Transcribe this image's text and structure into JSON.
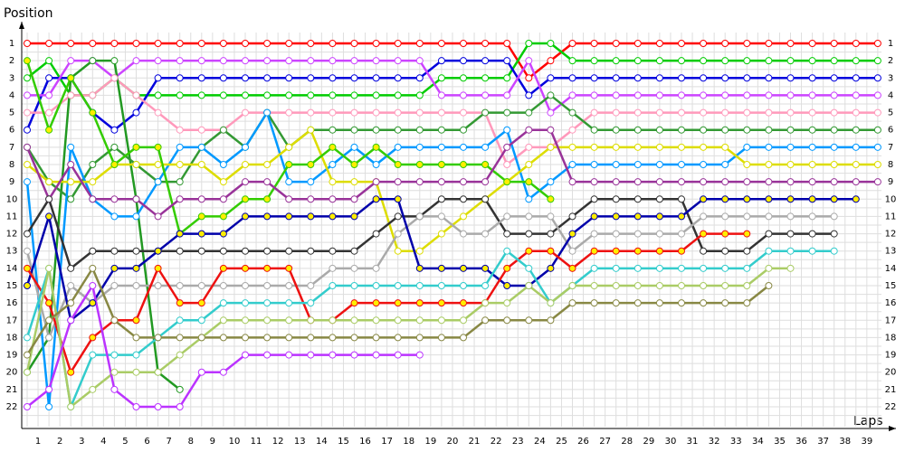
{
  "chart_data": {
    "type": "lap",
    "y_label": "Position",
    "x_label": "Laps",
    "x": [
      0,
      1,
      2,
      3,
      4,
      5,
      6,
      7,
      8,
      9,
      10,
      11,
      12,
      13,
      14,
      15,
      16,
      17,
      18,
      19,
      20,
      21,
      22,
      23,
      24,
      25,
      26,
      27,
      28,
      29,
      30,
      31,
      32,
      33,
      34,
      35,
      36,
      37,
      38,
      39
    ],
    "xlim": [
      0,
      39
    ],
    "xticks": [
      1,
      2,
      3,
      4,
      5,
      6,
      7,
      8,
      9,
      10,
      11,
      12,
      13,
      14,
      15,
      16,
      17,
      18,
      19,
      20,
      21,
      22,
      23,
      24,
      25,
      26,
      27,
      28,
      29,
      30,
      31,
      32,
      33,
      34,
      35,
      36,
      37,
      38,
      39
    ],
    "ylim": [
      1,
      22
    ],
    "y_inverted": true,
    "yticks": [
      1,
      2,
      3,
      4,
      5,
      6,
      7,
      8,
      9,
      10,
      11,
      12,
      13,
      14,
      15,
      16,
      17,
      18,
      19,
      20,
      21,
      22
    ],
    "grid": true,
    "series": [
      {
        "color": "#ff0000",
        "marker_fill": "#ffffff",
        "values": [
          1,
          1,
          1,
          1,
          1,
          1,
          1,
          1,
          1,
          1,
          1,
          1,
          1,
          1,
          1,
          1,
          1,
          1,
          1,
          1,
          1,
          1,
          1,
          3,
          2,
          1,
          1,
          1,
          1,
          1,
          1,
          1,
          1,
          1,
          1,
          1,
          1,
          1,
          1,
          1
        ]
      },
      {
        "color": "#00cc00",
        "marker_fill": "#ffffff",
        "values": [
          3,
          2,
          4,
          4,
          3,
          4,
          4,
          4,
          4,
          4,
          4,
          4,
          4,
          4,
          4,
          4,
          4,
          4,
          4,
          3,
          3,
          3,
          3,
          1,
          1,
          2,
          2,
          2,
          2,
          2,
          2,
          2,
          2,
          2,
          2,
          2,
          2,
          2,
          2,
          2
        ]
      },
      {
        "color": "#0000dd",
        "marker_fill": "#ffffff",
        "values": [
          6,
          3,
          3,
          5,
          6,
          5,
          3,
          3,
          3,
          3,
          3,
          3,
          3,
          3,
          3,
          3,
          3,
          3,
          3,
          2,
          2,
          2,
          2,
          4,
          3,
          3,
          3,
          3,
          3,
          3,
          3,
          3,
          3,
          3,
          3,
          3,
          3,
          3,
          3,
          3
        ]
      },
      {
        "color": "#cc44ff",
        "marker_fill": "#ffffff",
        "values": [
          4,
          4,
          2,
          2,
          3,
          2,
          2,
          2,
          2,
          2,
          2,
          2,
          2,
          2,
          2,
          2,
          2,
          2,
          2,
          4,
          4,
          4,
          4,
          2,
          5,
          4,
          4,
          4,
          4,
          4,
          4,
          4,
          4,
          4,
          4,
          4,
          4,
          4,
          4,
          4
        ]
      },
      {
        "color": "#ff99bb",
        "marker_fill": "#ffffff",
        "values": [
          5,
          5,
          4,
          4,
          3,
          4,
          5,
          6,
          6,
          6,
          5,
          5,
          5,
          5,
          5,
          5,
          5,
          5,
          5,
          5,
          5,
          5,
          8,
          7,
          7,
          6,
          5,
          5,
          5,
          5,
          5,
          5,
          5,
          5,
          5,
          5,
          5,
          5,
          5,
          5
        ]
      },
      {
        "color": "#229922",
        "marker_fill": "#ffffff",
        "values": [
          20,
          18,
          3,
          2,
          2,
          10,
          20,
          21,
          null,
          null,
          null,
          null,
          null,
          null,
          null,
          null,
          null,
          null,
          null,
          null,
          null,
          null,
          null,
          null,
          null,
          null,
          null,
          null,
          null,
          null,
          null,
          null,
          null,
          null,
          null,
          null,
          null,
          null,
          null,
          null
        ]
      },
      {
        "color": "#339933",
        "marker_fill": "#ffffff",
        "values": [
          7,
          9,
          10,
          8,
          7,
          8,
          9,
          9,
          7,
          6,
          7,
          5,
          7,
          6,
          6,
          6,
          6,
          6,
          6,
          6,
          6,
          5,
          5,
          5,
          4,
          5,
          6,
          6,
          6,
          6,
          6,
          6,
          6,
          6,
          6,
          6,
          6,
          6,
          6,
          6
        ]
      },
      {
        "color": "#0099ff",
        "marker_fill": "#ffffff",
        "values": [
          9,
          22,
          7,
          10,
          11,
          11,
          9,
          7,
          7,
          8,
          7,
          5,
          9,
          9,
          8,
          7,
          8,
          7,
          7,
          7,
          7,
          7,
          6,
          10,
          9,
          8,
          8,
          8,
          8,
          8,
          8,
          8,
          8,
          7,
          7,
          7,
          7,
          7,
          7,
          7
        ]
      },
      {
        "color": "#dddd00",
        "marker_fill": "#ffffff",
        "values": [
          8,
          9,
          9,
          9,
          8,
          8,
          8,
          8,
          8,
          9,
          8,
          8,
          7,
          6,
          9,
          9,
          9,
          13,
          13,
          12,
          11,
          10,
          9,
          8,
          7,
          7,
          7,
          7,
          7,
          7,
          7,
          7,
          7,
          8,
          8,
          8,
          8,
          8,
          8,
          8
        ]
      },
      {
        "color": "#33cc00",
        "marker_fill": "#ffee00",
        "values": [
          2,
          6,
          3,
          5,
          8,
          7,
          7,
          12,
          11,
          11,
          10,
          10,
          8,
          8,
          7,
          8,
          7,
          8,
          8,
          8,
          8,
          8,
          9,
          9,
          10,
          null,
          null,
          null,
          null,
          null,
          null,
          null,
          null,
          null,
          null,
          null,
          null,
          null,
          null,
          null
        ]
      },
      {
        "color": "#993399",
        "marker_fill": "#ffffff",
        "values": [
          7,
          10,
          8,
          10,
          10,
          10,
          11,
          10,
          10,
          10,
          9,
          9,
          10,
          10,
          10,
          10,
          9,
          9,
          9,
          9,
          9,
          9,
          7,
          6,
          6,
          9,
          9,
          9,
          9,
          9,
          9,
          9,
          9,
          9,
          9,
          9,
          9,
          9,
          9,
          9
        ]
      },
      {
        "color": "#333333",
        "marker_fill": "#ffffff",
        "values": [
          12,
          10,
          14,
          13,
          13,
          13,
          13,
          13,
          13,
          13,
          13,
          13,
          13,
          13,
          13,
          13,
          12,
          11,
          11,
          10,
          10,
          10,
          12,
          12,
          12,
          11,
          10,
          10,
          10,
          10,
          10,
          13,
          13,
          13,
          12,
          12,
          12,
          12,
          null,
          null
        ]
      },
      {
        "color": "#aaaaaa",
        "marker_fill": "#ffffff",
        "values": [
          13,
          18,
          15,
          16,
          15,
          15,
          15,
          15,
          15,
          15,
          15,
          15,
          15,
          15,
          14,
          14,
          14,
          12,
          11,
          11,
          12,
          12,
          11,
          11,
          11,
          13,
          12,
          12,
          12,
          12,
          12,
          11,
          11,
          11,
          11,
          11,
          11,
          11,
          null,
          null
        ]
      },
      {
        "color": "#0000aa",
        "marker_fill": "#ffee00",
        "values": [
          15,
          11,
          17,
          16,
          14,
          14,
          13,
          12,
          12,
          12,
          11,
          11,
          11,
          11,
          11,
          11,
          10,
          10,
          14,
          14,
          14,
          14,
          15,
          15,
          14,
          12,
          11,
          11,
          11,
          11,
          11,
          10,
          10,
          10,
          10,
          10,
          10,
          10,
          10,
          null
        ]
      },
      {
        "color": "#ee1111",
        "marker_fill": "#ffee00",
        "values": [
          14,
          16,
          20,
          18,
          17,
          17,
          14,
          16,
          16,
          14,
          14,
          14,
          14,
          17,
          17,
          16,
          16,
          16,
          16,
          16,
          16,
          16,
          14,
          13,
          13,
          14,
          13,
          13,
          13,
          13,
          13,
          12,
          12,
          12,
          null,
          null,
          null,
          null,
          null,
          null
        ]
      },
      {
        "color": "#33cccc",
        "marker_fill": "#ffffff",
        "values": [
          18,
          14,
          22,
          19,
          19,
          19,
          18,
          17,
          17,
          16,
          16,
          16,
          16,
          16,
          15,
          15,
          15,
          15,
          15,
          15,
          15,
          15,
          13,
          14,
          16,
          15,
          14,
          14,
          14,
          14,
          14,
          14,
          14,
          14,
          13,
          13,
          13,
          13,
          null,
          null
        ]
      },
      {
        "color": "#aacc66",
        "marker_fill": "#ffffff",
        "values": [
          20,
          14,
          22,
          21,
          20,
          20,
          20,
          19,
          18,
          17,
          17,
          17,
          17,
          17,
          17,
          17,
          17,
          17,
          17,
          17,
          17,
          16,
          16,
          15,
          16,
          15,
          15,
          15,
          15,
          15,
          15,
          15,
          15,
          15,
          14,
          14,
          null,
          null,
          null,
          null
        ]
      },
      {
        "color": "#888844",
        "marker_fill": "#ffffff",
        "values": [
          19,
          17,
          16,
          14,
          17,
          18,
          18,
          18,
          18,
          18,
          18,
          18,
          18,
          18,
          18,
          18,
          18,
          18,
          18,
          18,
          18,
          17,
          17,
          17,
          17,
          16,
          16,
          16,
          16,
          16,
          16,
          16,
          16,
          16,
          15,
          null,
          null,
          null,
          null,
          null
        ]
      },
      {
        "color": "#bb33ff",
        "marker_fill": "#ffffff",
        "values": [
          22,
          21,
          17,
          15,
          21,
          22,
          22,
          22,
          20,
          20,
          19,
          19,
          19,
          19,
          19,
          19,
          19,
          19,
          19,
          null,
          null,
          null,
          null,
          null,
          null,
          null,
          null,
          null,
          null,
          null,
          null,
          null,
          null,
          null,
          null,
          null,
          null,
          null,
          null,
          null
        ]
      }
    ]
  }
}
